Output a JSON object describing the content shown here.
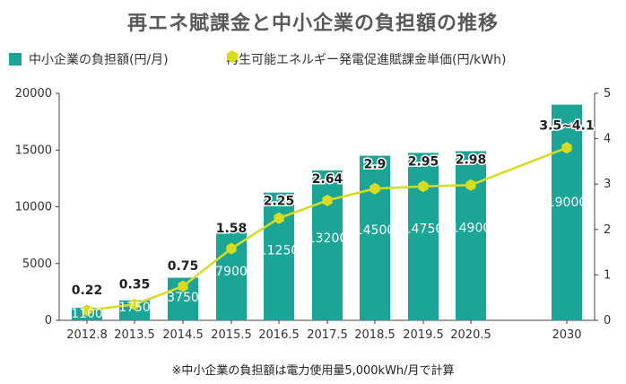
{
  "title": "再エネ賦課金と中小企業の負担額の推移",
  "footnote": "※中小企業の負担額は電力使用量5,000kWh/月で計算",
  "colors": {
    "bar": "#1AA596",
    "line": "#D7DC1E",
    "axis": "#444444",
    "grid": "#e6e6e6"
  },
  "chart_data": {
    "type": "bar",
    "categories": [
      "2012.8",
      "2013.5",
      "2014.5",
      "2015.5",
      "2016.5",
      "2017.5",
      "2018.5",
      "2019.5",
      "2020.5",
      "2030"
    ],
    "series": [
      {
        "name": "中小企業の負担額(円/月)",
        "type": "bar",
        "axis": "left",
        "values": [
          1100,
          1750,
          3750,
          7900,
          11250,
          13200,
          14500,
          14750,
          14900,
          19000
        ],
        "labels": [
          "1100",
          "1750",
          "3750",
          "7900",
          "11250",
          "13200",
          "14500",
          "14750",
          "14900",
          "19000"
        ]
      },
      {
        "name": "再生可能エネルギー発電促進賦課金単価(円/kWh)",
        "type": "line",
        "axis": "right",
        "values": [
          0.22,
          0.35,
          0.75,
          1.58,
          2.25,
          2.64,
          2.9,
          2.95,
          2.98,
          3.8
        ],
        "labels": [
          "0.22",
          "0.35",
          "0.75",
          "1.58",
          "2.25",
          "2.64",
          "2.9",
          "2.95",
          "2.98",
          "3.5~4.1"
        ]
      }
    ],
    "y_left": {
      "range": [
        0,
        20000
      ],
      "ticks": [
        "0",
        "5000",
        "10000",
        "15000",
        "20000"
      ]
    },
    "y_right": {
      "range": [
        0,
        5
      ],
      "ticks": [
        "0",
        "1",
        "2",
        "3",
        "4",
        "5"
      ]
    },
    "legend_position": "top",
    "grid": false
  }
}
